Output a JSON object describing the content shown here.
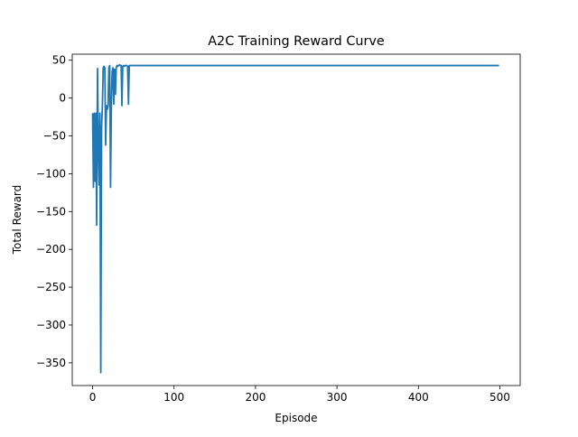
{
  "chart_data": {
    "type": "line",
    "title": "A2C Training Reward Curve",
    "xlabel": "Episode",
    "ylabel": "Total Reward",
    "xlim": [
      -25,
      525
    ],
    "ylim": [
      -380,
      58
    ],
    "xticks": [
      0,
      100,
      200,
      300,
      400,
      500
    ],
    "yticks": [
      50,
      0,
      -50,
      -100,
      -150,
      -200,
      -250,
      -300,
      -350
    ],
    "grid": false,
    "series": [
      {
        "name": "",
        "color": "#1f77b4",
        "x": [
          0,
          1,
          2,
          3,
          4,
          5,
          6,
          7,
          8,
          9,
          10,
          11,
          12,
          13,
          14,
          15,
          16,
          17,
          18,
          19,
          20,
          21,
          22,
          23,
          24,
          25,
          26,
          27,
          28,
          29,
          30,
          31,
          32,
          33,
          34,
          35,
          36,
          37,
          38,
          39,
          40,
          41,
          42,
          43,
          44,
          45,
          46,
          47,
          48,
          49,
          50,
          60,
          80,
          100,
          150,
          200,
          250,
          300,
          350,
          400,
          450,
          499
        ],
        "y": [
          -20,
          -118,
          -20,
          -110,
          -20,
          -168,
          39,
          -60,
          -115,
          -20,
          -363,
          -40,
          -10,
          40,
          42,
          40,
          -62,
          -10,
          -15,
          -10,
          40,
          43,
          -118,
          -10,
          35,
          40,
          -8,
          38,
          5,
          40,
          43,
          42,
          43,
          44,
          43,
          43,
          -10,
          42,
          43,
          42,
          43,
          43,
          43,
          42,
          -8,
          43,
          43,
          43,
          43,
          43,
          43,
          43,
          43,
          43,
          43,
          43,
          43,
          43,
          43,
          43,
          43,
          43
        ]
      }
    ]
  }
}
